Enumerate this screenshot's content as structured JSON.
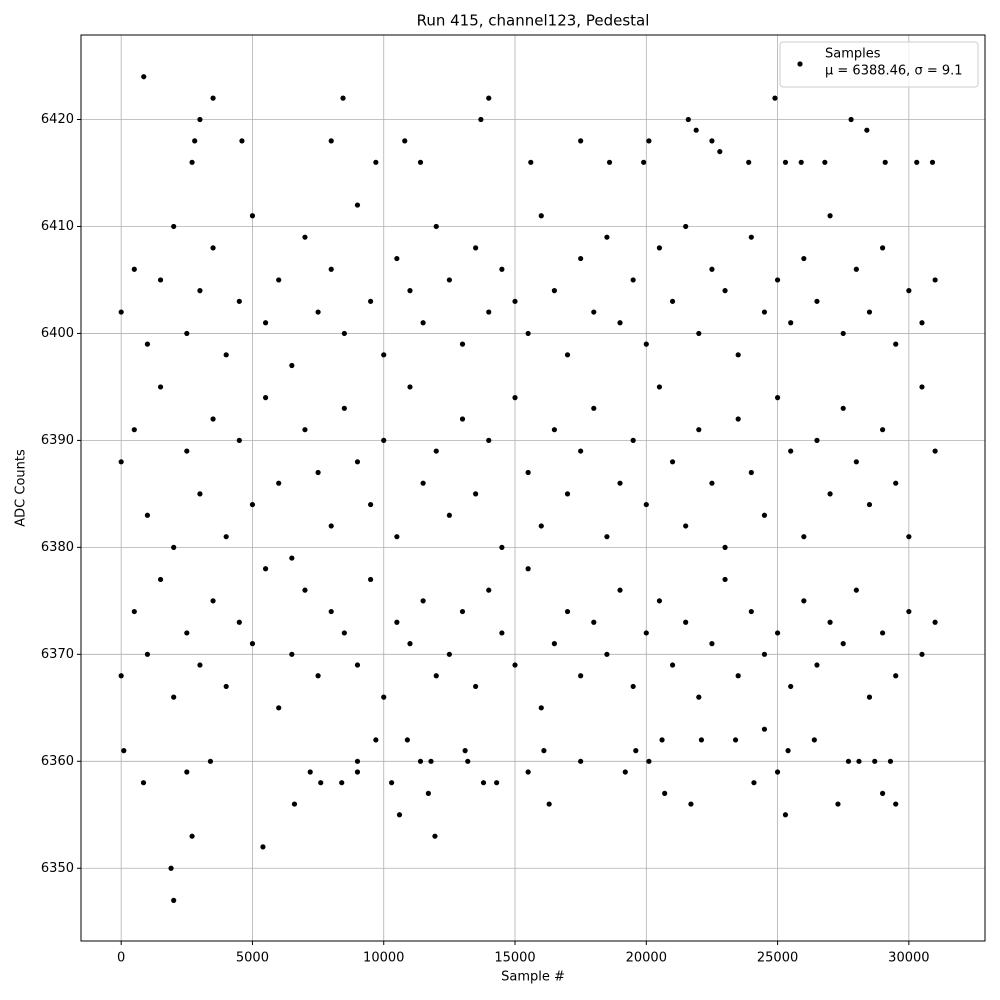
{
  "chart_data": {
    "type": "scatter",
    "title": "Run 415, channel123, Pedestal",
    "xlabel": "Sample #",
    "ylabel": "ADC Counts",
    "xlim": [
      -1530,
      32900
    ],
    "ylim": [
      6343.2,
      6427.9
    ],
    "xticks": [
      0,
      5000,
      10000,
      15000,
      20000,
      25000,
      30000
    ],
    "yticks": [
      6350,
      6360,
      6370,
      6380,
      6390,
      6400,
      6410,
      6420
    ],
    "grid": true,
    "legend": "upper right",
    "legend_label": "μ = 6388.46, σ = 9.1",
    "series": [
      {
        "name": "Samples",
        "color": "#000000",
        "x": [
          0,
          0,
          0,
          500,
          500,
          500,
          1000,
          1000,
          1000,
          1500,
          1500,
          1500,
          2000,
          2000,
          2000,
          2500,
          2500,
          2500,
          3000,
          3000,
          3000,
          3500,
          3500,
          3500,
          4000,
          4000,
          4000,
          4500,
          4500,
          4500,
          5000,
          5000,
          5000,
          5500,
          5500,
          5500,
          6000,
          6000,
          6000,
          6500,
          6500,
          6500,
          7000,
          7000,
          7000,
          7500,
          7500,
          7500,
          8000,
          8000,
          8000,
          8500,
          8500,
          8500,
          9000,
          9000,
          9000,
          9500,
          9500,
          9500,
          10000,
          10000,
          10000,
          10500,
          10500,
          10500,
          11000,
          11000,
          11000,
          11500,
          11500,
          11500,
          12000,
          12000,
          12000,
          12500,
          12500,
          12500,
          13000,
          13000,
          13000,
          13500,
          13500,
          13500,
          14000,
          14000,
          14000,
          14500,
          14500,
          14500,
          15000,
          15000,
          15000,
          15500,
          15500,
          15500,
          16000,
          16000,
          16000,
          16500,
          16500,
          16500,
          17000,
          17000,
          17000,
          17500,
          17500,
          17500,
          18000,
          18000,
          18000,
          18500,
          18500,
          18500,
          19000,
          19000,
          19000,
          19500,
          19500,
          19500,
          20000,
          20000,
          20000,
          20500,
          20500,
          20500,
          21000,
          21000,
          21000,
          21500,
          21500,
          21500,
          22000,
          22000,
          22000,
          22500,
          22500,
          22500,
          23000,
          23000,
          23000,
          23500,
          23500,
          23500,
          24000,
          24000,
          24000,
          24500,
          24500,
          24500,
          25000,
          25000,
          25000,
          25500,
          25500,
          25500,
          26000,
          26000,
          26000,
          26500,
          26500,
          26500,
          27000,
          27000,
          27000,
          27500,
          27500,
          27500,
          28000,
          28000,
          28000,
          28500,
          28500,
          28500,
          29000,
          29000,
          29000,
          29500,
          29500,
          29500,
          30000,
          30000,
          30000,
          30500,
          30500,
          30500,
          31000,
          31000,
          31000,
          860,
          3000,
          3500,
          8450,
          13700,
          14000,
          1900,
          2000,
          2700,
          5400,
          11950,
          10600,
          16300,
          25300,
          6600,
          24900,
          21600,
          27800,
          29500,
          27300,
          21700,
          20700,
          11700,
          29000,
          100,
          850,
          2500,
          3400,
          7200,
          7600,
          8400,
          9000,
          9000,
          9700,
          10300,
          10900,
          11400,
          11800,
          13100,
          13200,
          13800,
          14300,
          15500,
          16100,
          17500,
          19200,
          19600,
          20100,
          20600,
          22100,
          23400,
          24100,
          24500,
          25000,
          25400,
          26400,
          27700,
          28100,
          28700,
          29300,
          2800,
          4600,
          8000,
          10800,
          17500,
          20100,
          22500,
          28400,
          21900,
          22800,
          11400,
          2700,
          9700,
          15600,
          18600,
          19900,
          23900,
          25300,
          25900,
          26800,
          29100,
          30300,
          30900
        ],
        "y": [
          6368,
          6388,
          6402,
          6374,
          6391,
          6406,
          6370,
          6383,
          6399,
          6377,
          6395,
          6405,
          6366,
          6380,
          6410,
          6372,
          6389,
          6400,
          6369,
          6385,
          6404,
          6375,
          6392,
          6408,
          6367,
          6381,
          6398,
          6373,
          6390,
          6403,
          6371,
          6384,
          6411,
          6378,
          6394,
          6401,
          6365,
          6386,
          6405,
          6370,
          6379,
          6397,
          6376,
          6391,
          6409,
          6368,
          6387,
          6402,
          6374,
          6382,
          6406,
          6372,
          6393,
          6400,
          6369,
          6388,
          6412,
          6377,
          6384,
          6403,
          6366,
          6390,
          6398,
          6373,
          6381,
          6407,
          6371,
          6395,
          6404,
          6375,
          6386,
          6401,
          6368,
          6389,
          6410,
          6370,
          6383,
          6405,
          6374,
          6392,
          6399,
          6367,
          6385,
          6408,
          6376,
          6390,
          6402,
          6372,
          6380,
          6406,
          6369,
          6394,
          6403,
          6378,
          6387,
          6400,
          6365,
          6382,
          6411,
          6371,
          6391,
          6404,
          6374,
          6385,
          6398,
          6368,
          6389,
          6407,
          6373,
          6393,
          6402,
          6370,
          6381,
          6409,
          6376,
          6386,
          6401,
          6367,
          6390,
          6405,
          6372,
          6384,
          6399,
          6375,
          6395,
          6408,
          6369,
          6388,
          6403,
          6373,
          6382,
          6410,
          6366,
          6391,
          6400,
          6371,
          6386,
          6406,
          6377,
          6380,
          6404,
          6368,
          6392,
          6398,
          6374,
          6387,
          6409,
          6370,
          6383,
          6402,
          6372,
          6394,
          6405,
          6367,
          6389,
          6401,
          6375,
          6381,
          6407,
          6369,
          6390,
          6403,
          6373,
          6385,
          6411,
          6371,
          6393,
          6400,
          6376,
          6388,
          6406,
          6366,
          6384,
          6402,
          6372,
          6391,
          6408,
          6368,
          6386,
          6399,
          6374,
          6381,
          6404,
          6370,
          6395,
          6401,
          6373,
          6389,
          6405,
          6424,
          6420,
          6422,
          6422,
          6420,
          6422,
          6350,
          6347,
          6353,
          6352,
          6353,
          6355,
          6356,
          6355,
          6356,
          6422,
          6420,
          6420,
          6356,
          6356,
          6356,
          6357,
          6357,
          6357,
          6361,
          6358,
          6359,
          6360,
          6359,
          6358,
          6358,
          6359,
          6360,
          6362,
          6358,
          6362,
          6360,
          6360,
          6361,
          6360,
          6358,
          6358,
          6359,
          6361,
          6360,
          6359,
          6361,
          6360,
          6362,
          6362,
          6362,
          6358,
          6363,
          6359,
          6361,
          6362,
          6360,
          6360,
          6360,
          6360,
          6418,
          6418,
          6418,
          6418,
          6418,
          6418,
          6418,
          6419,
          6419,
          6417,
          6416,
          6416,
          6416,
          6416,
          6416,
          6416,
          6416,
          6416,
          6416,
          6416,
          6416,
          6416,
          6416
        ]
      }
    ]
  }
}
